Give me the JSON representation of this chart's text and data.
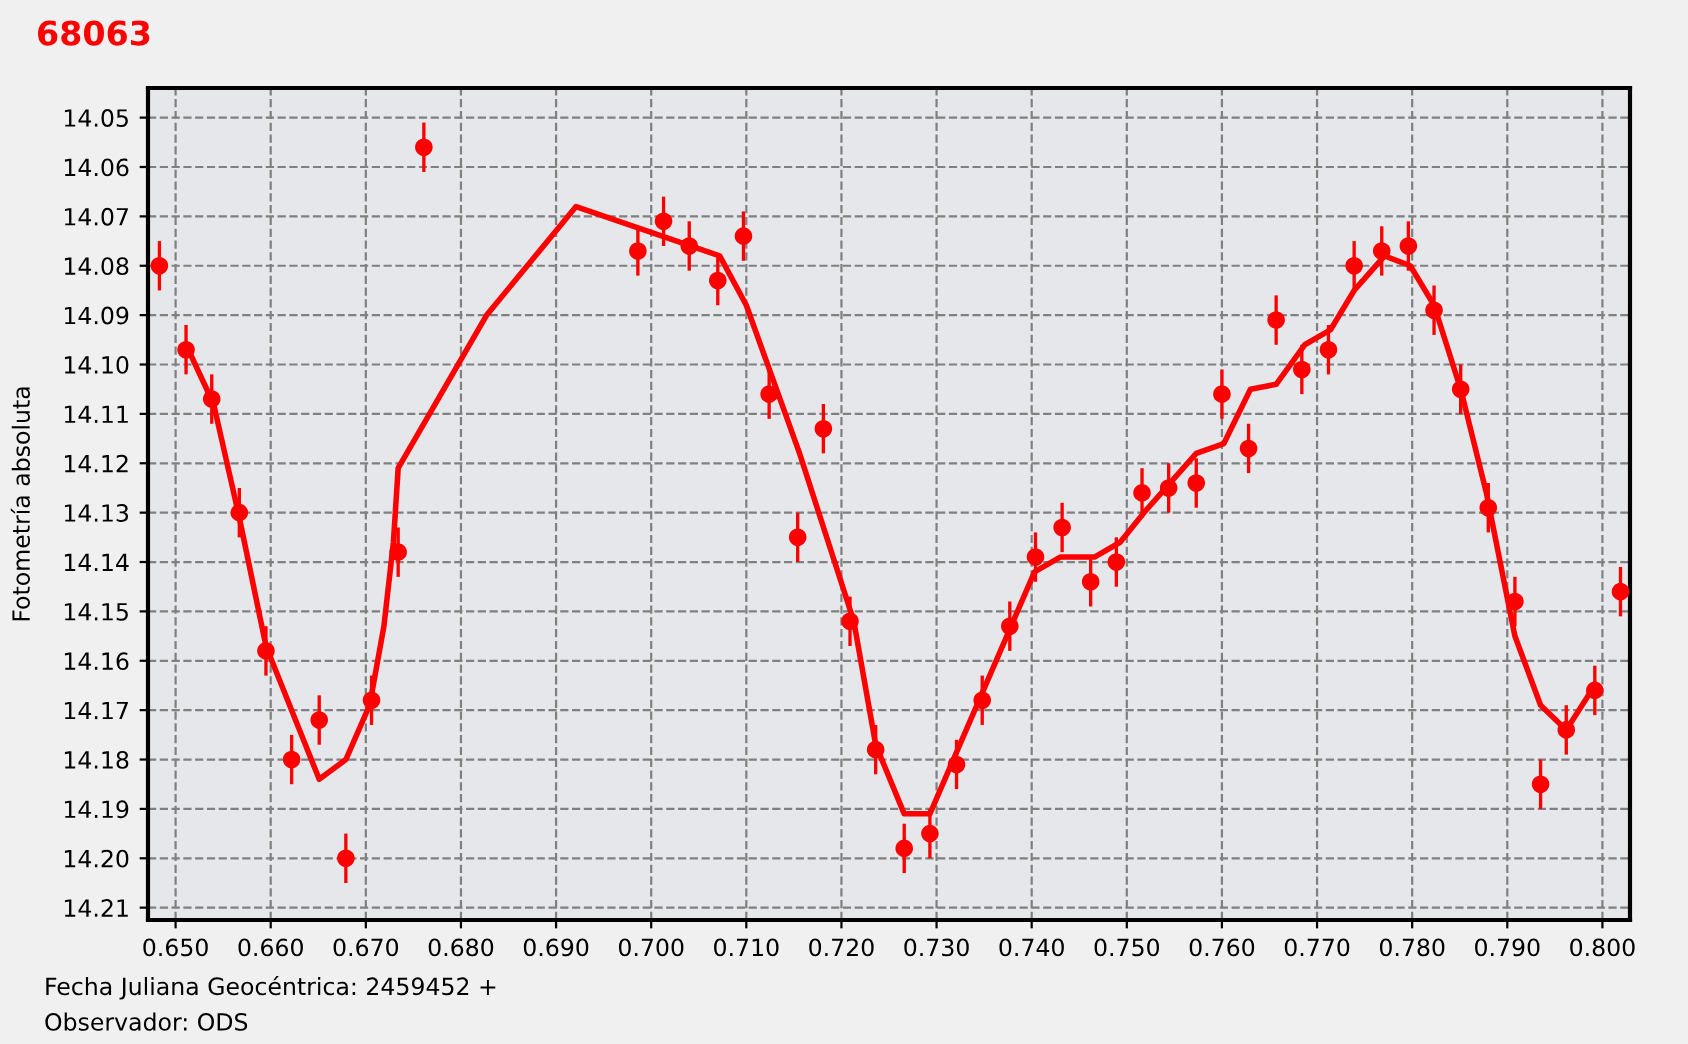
{
  "chart_data": {
    "type": "scatter",
    "title": "68063",
    "ylabel": "Fotometría absoluta",
    "annotations": [
      "Fecha Juliana Geocéntrica: 2459452 +",
      "Observador: ODS"
    ],
    "xlim": [
      0.6471,
      0.8029
    ],
    "ylim": [
      14.2125,
      14.044
    ],
    "xticks": [
      {
        "value": 0.65,
        "label": "0.650"
      },
      {
        "value": 0.66,
        "label": "0.660"
      },
      {
        "value": 0.67,
        "label": "0.670"
      },
      {
        "value": 0.68,
        "label": "0.680"
      },
      {
        "value": 0.69,
        "label": "0.690"
      },
      {
        "value": 0.7,
        "label": "0.700"
      },
      {
        "value": 0.71,
        "label": "0.710"
      },
      {
        "value": 0.72,
        "label": "0.720"
      },
      {
        "value": 0.73,
        "label": "0.730"
      },
      {
        "value": 0.74,
        "label": "0.740"
      },
      {
        "value": 0.75,
        "label": "0.750"
      },
      {
        "value": 0.76,
        "label": "0.760"
      },
      {
        "value": 0.77,
        "label": "0.770"
      },
      {
        "value": 0.78,
        "label": "0.780"
      },
      {
        "value": 0.79,
        "label": "0.790"
      },
      {
        "value": 0.8,
        "label": "0.800"
      }
    ],
    "yticks": [
      {
        "value": 14.05,
        "label": "14.05"
      },
      {
        "value": 14.06,
        "label": "14.06"
      },
      {
        "value": 14.07,
        "label": "14.07"
      },
      {
        "value": 14.08,
        "label": "14.08"
      },
      {
        "value": 14.09,
        "label": "14.09"
      },
      {
        "value": 14.1,
        "label": "14.10"
      },
      {
        "value": 14.11,
        "label": "14.11"
      },
      {
        "value": 14.12,
        "label": "14.12"
      },
      {
        "value": 14.13,
        "label": "14.13"
      },
      {
        "value": 14.14,
        "label": "14.14"
      },
      {
        "value": 14.15,
        "label": "14.15"
      },
      {
        "value": 14.16,
        "label": "14.16"
      },
      {
        "value": 14.17,
        "label": "14.17"
      },
      {
        "value": 14.18,
        "label": "14.18"
      },
      {
        "value": 14.19,
        "label": "14.19"
      },
      {
        "value": 14.2,
        "label": "14.20"
      },
      {
        "value": 14.21,
        "label": "14.21"
      }
    ],
    "grid": true,
    "legend": false,
    "series": [
      {
        "color": "#ff0000",
        "marker": "circle",
        "x": [
          0.6483,
          0.6511,
          0.6538,
          0.6567,
          0.6595,
          0.6622,
          0.6651,
          0.6679,
          0.6706,
          0.6734,
          0.6761,
          0.6986,
          0.7013,
          0.704,
          0.707,
          0.7097,
          0.7124,
          0.7154,
          0.7181,
          0.7209,
          0.7236,
          0.7266,
          0.7293,
          0.7321,
          0.7348,
          0.7377,
          0.7404,
          0.7432,
          0.7462,
          0.7489,
          0.7516,
          0.7544,
          0.7573,
          0.76,
          0.7628,
          0.7657,
          0.7684,
          0.7712,
          0.7739,
          0.7768,
          0.7796,
          0.7823,
          0.7851,
          0.788,
          0.7908,
          0.7935,
          0.7962,
          0.7992,
          0.8019
        ],
        "values": [
          14.08,
          14.097,
          14.107,
          14.13,
          14.158,
          14.18,
          14.172,
          14.2,
          14.168,
          14.138,
          14.056,
          14.077,
          14.071,
          14.076,
          14.083,
          14.074,
          14.106,
          14.135,
          14.113,
          14.152,
          14.178,
          14.198,
          14.195,
          14.181,
          14.168,
          14.153,
          14.139,
          14.133,
          14.144,
          14.14,
          14.126,
          14.125,
          14.124,
          14.106,
          14.117,
          14.091,
          14.101,
          14.097,
          14.08,
          14.077,
          14.076,
          14.089,
          14.105,
          14.129,
          14.148,
          14.185,
          14.174,
          14.166,
          14.146
        ],
        "errors": [
          0.005,
          0.005,
          0.005,
          0.005,
          0.005,
          0.005,
          0.005,
          0.005,
          0.005,
          0.005,
          0.005,
          0.005,
          0.005,
          0.005,
          0.005,
          0.005,
          0.005,
          0.005,
          0.005,
          0.005,
          0.005,
          0.005,
          0.005,
          0.005,
          0.005,
          0.005,
          0.005,
          0.005,
          0.005,
          0.005,
          0.005,
          0.005,
          0.005,
          0.005,
          0.005,
          0.005,
          0.005,
          0.005,
          0.005,
          0.005,
          0.005,
          0.005,
          0.005,
          0.005,
          0.005,
          0.005,
          0.005,
          0.005,
          0.005
        ]
      },
      {
        "type": "line",
        "color": "#ff0000",
        "marker": "none",
        "line_style": "solid",
        "x": [
          0.6511,
          0.654,
          0.6567,
          0.6595,
          0.6651,
          0.6679,
          0.6704,
          0.6719,
          0.6729,
          0.6734,
          0.6827,
          0.6921,
          0.7072,
          0.71,
          0.7156,
          0.7213,
          0.7236,
          0.7266,
          0.7293,
          0.7403,
          0.743,
          0.7466,
          0.7493,
          0.7518,
          0.7573,
          0.7602,
          0.763,
          0.7657,
          0.7687,
          0.7714,
          0.7739,
          0.7771,
          0.7798,
          0.7823,
          0.7851,
          0.7878,
          0.7908,
          0.7935,
          0.7962,
          0.7992
        ],
        "values": [
          14.096,
          14.108,
          14.131,
          14.157,
          14.184,
          14.18,
          14.169,
          14.153,
          14.136,
          14.121,
          14.09,
          14.068,
          14.078,
          14.088,
          14.118,
          14.152,
          14.177,
          14.191,
          14.191,
          14.142,
          14.139,
          14.139,
          14.136,
          14.13,
          14.118,
          14.116,
          14.105,
          14.104,
          14.096,
          14.093,
          14.085,
          14.078,
          14.08,
          14.088,
          14.105,
          14.126,
          14.155,
          14.169,
          14.174,
          14.165
        ]
      }
    ]
  }
}
